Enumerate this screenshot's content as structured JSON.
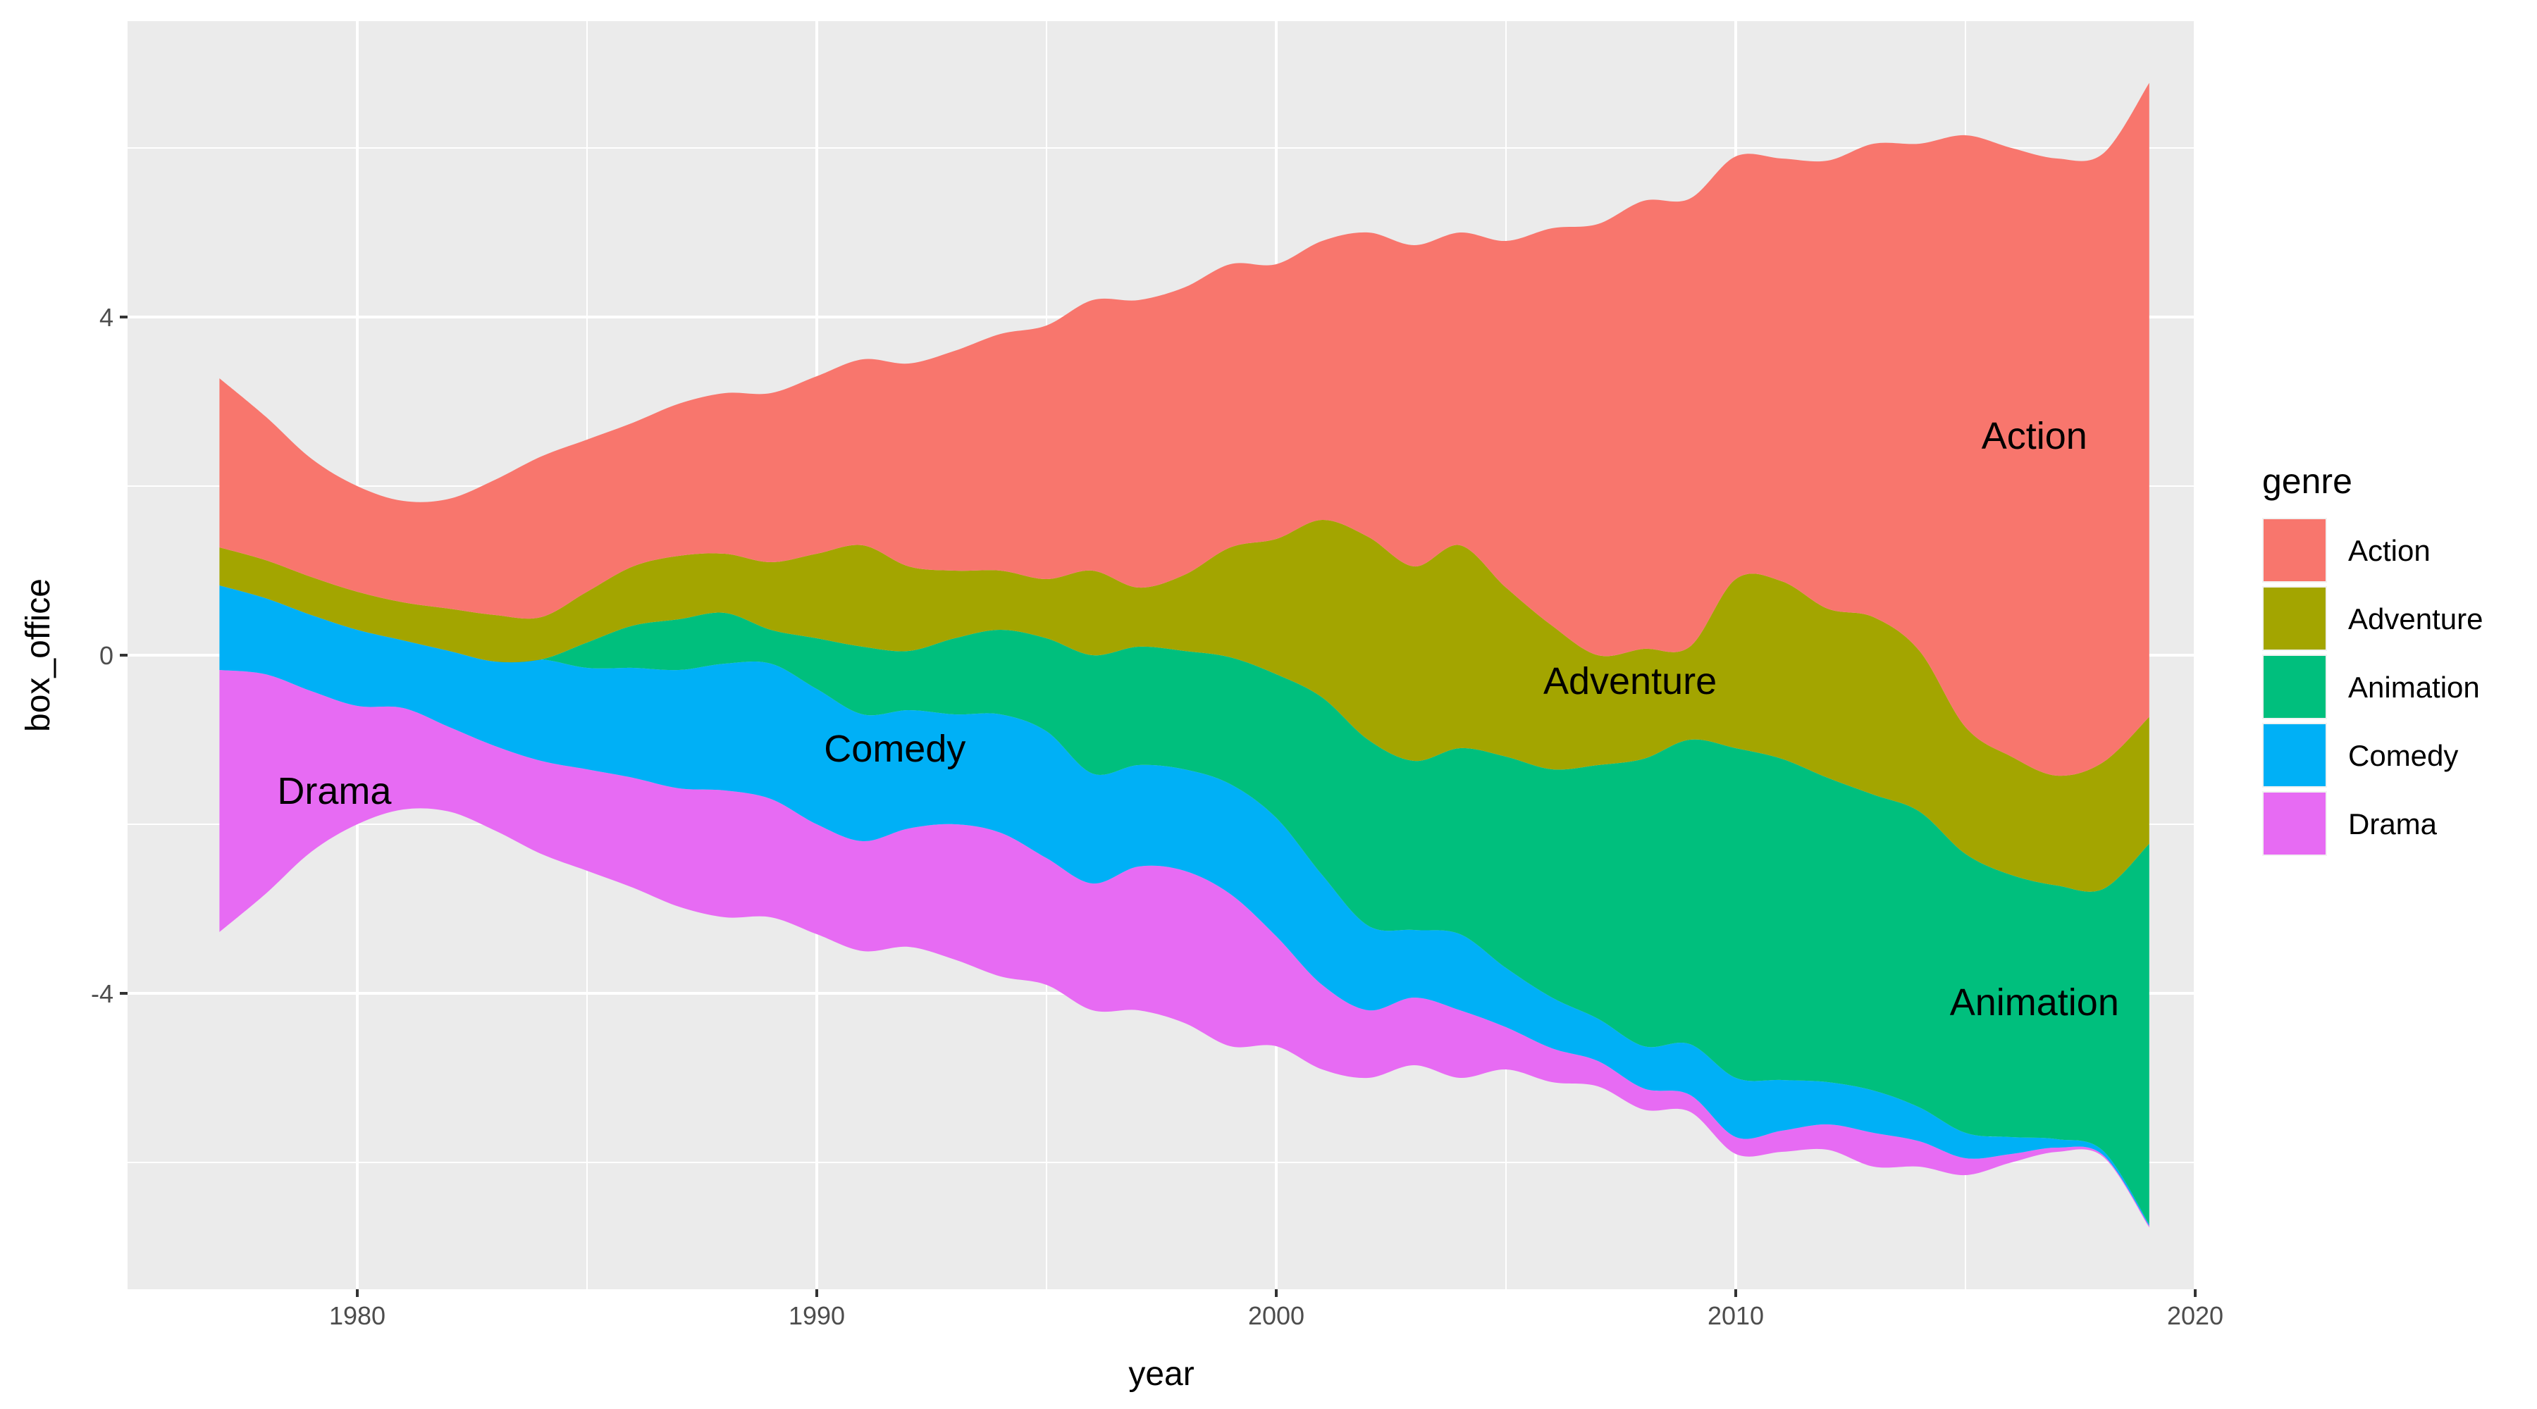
{
  "chart_data": {
    "type": "area",
    "subtype": "streamgraph",
    "title": "",
    "xlabel": "year",
    "ylabel": "box_office",
    "xlim": [
      1975,
      2020
    ],
    "ylim": [
      -7.5,
      7.5
    ],
    "x_ticks": [
      1980,
      1990,
      2000,
      2010,
      2020
    ],
    "y_ticks": [
      -4,
      0,
      4
    ],
    "grid": true,
    "legend_position": "right",
    "legend_title": "genre",
    "x": [
      1977,
      1978,
      1979,
      1980,
      1981,
      1982,
      1983,
      1984,
      1985,
      1986,
      1987,
      1988,
      1989,
      1990,
      1991,
      1992,
      1993,
      1994,
      1995,
      1996,
      1997,
      1998,
      1999,
      2000,
      2001,
      2002,
      2003,
      2004,
      2005,
      2006,
      2007,
      2008,
      2009,
      2010,
      2011,
      2012,
      2013,
      2014,
      2015,
      2016,
      2017,
      2018,
      2019
    ],
    "series": [
      {
        "name": "Action",
        "color": "#F8766D",
        "values": [
          2.0,
          1.7,
          1.4,
          1.25,
          1.2,
          1.3,
          1.6,
          1.9,
          1.8,
          1.7,
          1.8,
          1.9,
          2.0,
          2.1,
          2.2,
          2.4,
          2.6,
          2.8,
          3.0,
          3.2,
          3.4,
          3.4,
          3.35,
          3.25,
          3.3,
          3.6,
          3.8,
          3.7,
          4.1,
          4.7,
          5.1,
          5.3,
          5.3,
          5.0,
          5.0,
          5.3,
          5.6,
          6.0,
          7.0,
          7.2,
          7.3,
          7.2,
          7.5
        ]
      },
      {
        "name": "Adventure",
        "color": "#A3A500",
        "values": [
          0.45,
          0.45,
          0.45,
          0.45,
          0.45,
          0.5,
          0.55,
          0.5,
          0.6,
          0.7,
          0.75,
          0.7,
          0.8,
          1.0,
          1.2,
          1.0,
          0.8,
          0.7,
          0.7,
          1.0,
          0.7,
          0.9,
          1.3,
          1.6,
          2.1,
          2.4,
          2.3,
          2.4,
          2.0,
          1.7,
          1.3,
          1.3,
          1.1,
          2.0,
          2.1,
          2.0,
          2.1,
          1.9,
          1.5,
          1.4,
          1.3,
          1.5,
          1.5
        ]
      },
      {
        "name": "Animation",
        "color": "#00BF7D",
        "values": [
          0.0,
          0.0,
          0.0,
          0.0,
          0.0,
          0.0,
          0.0,
          0.0,
          0.3,
          0.5,
          0.6,
          0.6,
          0.4,
          0.6,
          0.8,
          0.7,
          0.9,
          1.0,
          1.1,
          1.4,
          1.4,
          1.4,
          1.5,
          1.7,
          2.1,
          2.2,
          2.0,
          2.2,
          2.5,
          2.7,
          3.0,
          3.4,
          3.6,
          3.9,
          3.8,
          3.6,
          3.5,
          3.5,
          3.3,
          3.1,
          3.0,
          3.1,
          4.5
        ]
      },
      {
        "name": "Comedy",
        "color": "#00B0F6",
        "values": [
          1.0,
          0.9,
          0.9,
          0.9,
          0.8,
          0.9,
          1.0,
          1.2,
          1.2,
          1.3,
          1.4,
          1.5,
          1.6,
          1.6,
          1.5,
          1.4,
          1.3,
          1.4,
          1.5,
          1.3,
          1.2,
          1.2,
          1.3,
          1.4,
          1.3,
          1.0,
          0.8,
          0.9,
          0.7,
          0.6,
          0.5,
          0.5,
          0.6,
          0.7,
          0.6,
          0.5,
          0.5,
          0.4,
          0.3,
          0.2,
          0.1,
          0.05,
          0.02
        ]
      },
      {
        "name": "Drama",
        "color": "#E76BF3",
        "values": [
          3.1,
          2.6,
          1.9,
          1.4,
          1.2,
          1.0,
          1.0,
          1.1,
          1.2,
          1.3,
          1.4,
          1.5,
          1.4,
          1.3,
          1.3,
          1.4,
          1.6,
          1.7,
          1.5,
          1.5,
          1.7,
          1.8,
          1.8,
          1.3,
          1.0,
          0.8,
          0.8,
          0.8,
          0.5,
          0.4,
          0.3,
          0.25,
          0.2,
          0.2,
          0.25,
          0.3,
          0.4,
          0.3,
          0.2,
          0.1,
          0.05,
          0.02,
          0.02
        ]
      }
    ],
    "annotations": [
      {
        "text": "Drama",
        "x": 1979.5,
        "y": -1.6
      },
      {
        "text": "Comedy",
        "x": 1991.7,
        "y": -1.1
      },
      {
        "text": "Adventure",
        "x": 2007.7,
        "y": -0.3
      },
      {
        "text": "Action",
        "x": 2016.5,
        "y": 2.6
      },
      {
        "text": "Animation",
        "x": 2016.5,
        "y": -4.1
      }
    ]
  }
}
